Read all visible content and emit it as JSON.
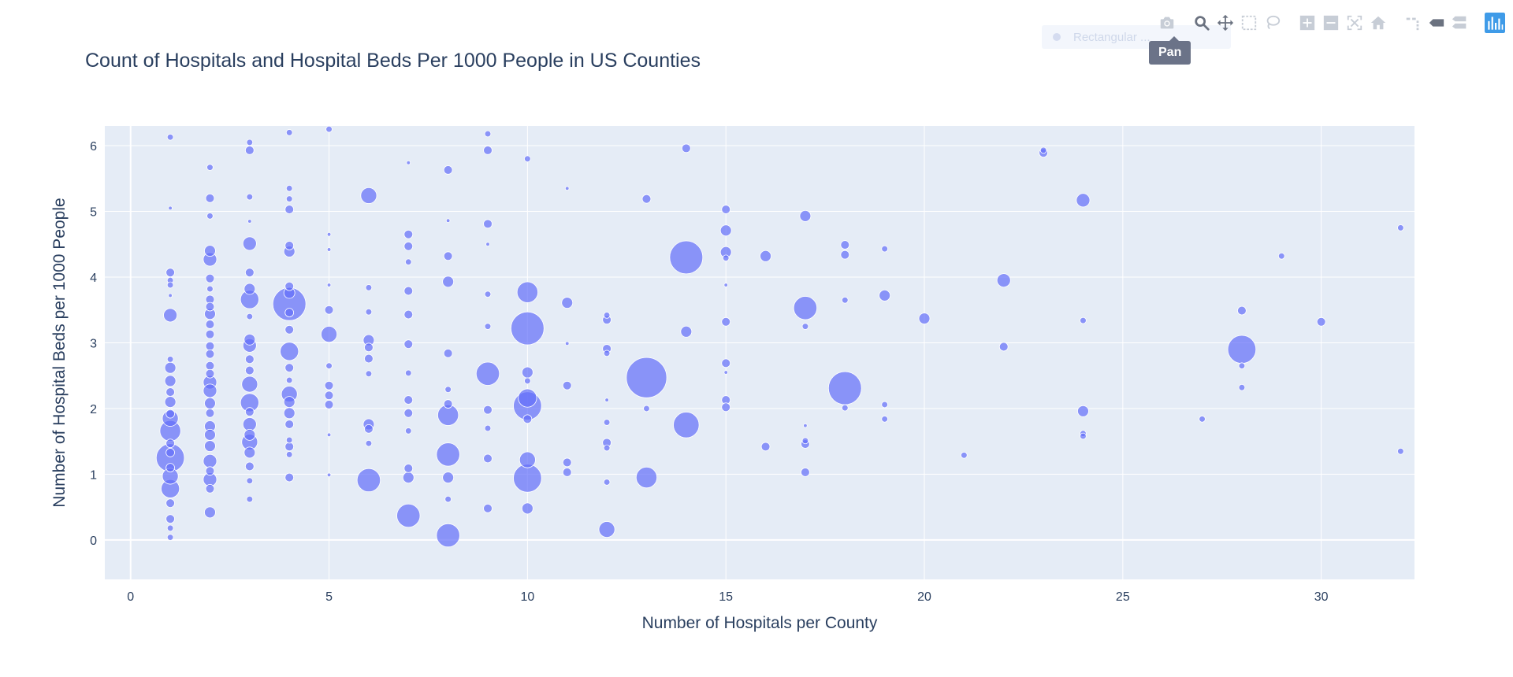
{
  "title": "Count of Hospitals and Hospital Beds Per 1000 People in US Counties",
  "modebar": {
    "buttons": [
      "camera-icon",
      "zoom-icon",
      "pan-icon",
      "box-select-icon",
      "lasso-icon",
      "zoom-in-icon",
      "zoom-out-icon",
      "autoscale-icon",
      "reset-axes-icon",
      "spike-lines-icon",
      "hover-closest-icon",
      "hover-compare-icon",
      "plotly-logo-icon"
    ],
    "active": "pan-icon",
    "hover_label": "Rectangular ...",
    "tooltip": "Pan"
  },
  "colors": {
    "marker": "#636efa",
    "plot_bg": "#e5ecf6",
    "text": "#2a3f5f",
    "grid": "#ffffff"
  },
  "chart_data": {
    "type": "scatter",
    "title": "Count of Hospitals and Hospital Beds Per 1000 People in US Counties",
    "xlabel": "Number of Hospitals per County",
    "ylabel": "Number of Hospital Beds per 1000 People",
    "xlim": [
      -0.65,
      32.35
    ],
    "ylim": [
      -0.6,
      6.3
    ],
    "xticks": [
      0,
      5,
      10,
      15,
      20,
      25,
      30
    ],
    "yticks": [
      0,
      1,
      2,
      3,
      4,
      5,
      6
    ],
    "grid": true,
    "legend": "none",
    "marker_size_encodes": "bubble size",
    "points": [
      {
        "x": 1,
        "y": 6.13,
        "s": 2
      },
      {
        "x": 1,
        "y": 5.05,
        "s": 1
      },
      {
        "x": 1,
        "y": 4.07,
        "s": 3
      },
      {
        "x": 1,
        "y": 3.95,
        "s": 2
      },
      {
        "x": 1,
        "y": 3.88,
        "s": 2
      },
      {
        "x": 1,
        "y": 3.72,
        "s": 1
      },
      {
        "x": 1,
        "y": 3.42,
        "s": 5
      },
      {
        "x": 1,
        "y": 2.75,
        "s": 2
      },
      {
        "x": 1,
        "y": 2.62,
        "s": 4
      },
      {
        "x": 1,
        "y": 2.42,
        "s": 4
      },
      {
        "x": 1,
        "y": 2.25,
        "s": 3
      },
      {
        "x": 1,
        "y": 2.1,
        "s": 4
      },
      {
        "x": 1,
        "y": 1.92,
        "s": 3
      },
      {
        "x": 1,
        "y": 1.85,
        "s": 6
      },
      {
        "x": 1,
        "y": 1.66,
        "s": 8
      },
      {
        "x": 1,
        "y": 1.47,
        "s": 3
      },
      {
        "x": 1,
        "y": 1.33,
        "s": 3
      },
      {
        "x": 1,
        "y": 1.25,
        "s": 11
      },
      {
        "x": 1,
        "y": 1.1,
        "s": 3
      },
      {
        "x": 1,
        "y": 0.97,
        "s": 6
      },
      {
        "x": 1,
        "y": 0.78,
        "s": 7
      },
      {
        "x": 1,
        "y": 0.56,
        "s": 3
      },
      {
        "x": 1,
        "y": 0.32,
        "s": 3
      },
      {
        "x": 1,
        "y": 0.18,
        "s": 2
      },
      {
        "x": 1,
        "y": 0.04,
        "s": 2
      },
      {
        "x": 2,
        "y": 5.67,
        "s": 2
      },
      {
        "x": 2,
        "y": 5.2,
        "s": 3
      },
      {
        "x": 2,
        "y": 4.93,
        "s": 2
      },
      {
        "x": 2,
        "y": 4.4,
        "s": 4
      },
      {
        "x": 2,
        "y": 4.27,
        "s": 5
      },
      {
        "x": 2,
        "y": 3.98,
        "s": 3
      },
      {
        "x": 2,
        "y": 3.82,
        "s": 2
      },
      {
        "x": 2,
        "y": 3.66,
        "s": 3
      },
      {
        "x": 2,
        "y": 3.55,
        "s": 3
      },
      {
        "x": 2,
        "y": 3.44,
        "s": 4
      },
      {
        "x": 2,
        "y": 3.28,
        "s": 3
      },
      {
        "x": 2,
        "y": 3.13,
        "s": 3
      },
      {
        "x": 2,
        "y": 2.95,
        "s": 3
      },
      {
        "x": 2,
        "y": 2.83,
        "s": 3
      },
      {
        "x": 2,
        "y": 2.65,
        "s": 3
      },
      {
        "x": 2,
        "y": 2.53,
        "s": 3
      },
      {
        "x": 2,
        "y": 2.4,
        "s": 5
      },
      {
        "x": 2,
        "y": 2.27,
        "s": 5
      },
      {
        "x": 2,
        "y": 2.08,
        "s": 4
      },
      {
        "x": 2,
        "y": 1.93,
        "s": 3
      },
      {
        "x": 2,
        "y": 1.73,
        "s": 4
      },
      {
        "x": 2,
        "y": 1.6,
        "s": 4
      },
      {
        "x": 2,
        "y": 1.43,
        "s": 4
      },
      {
        "x": 2,
        "y": 1.2,
        "s": 5
      },
      {
        "x": 2,
        "y": 1.05,
        "s": 3
      },
      {
        "x": 2,
        "y": 0.92,
        "s": 5
      },
      {
        "x": 2,
        "y": 0.78,
        "s": 3
      },
      {
        "x": 2,
        "y": 0.42,
        "s": 4
      },
      {
        "x": 3,
        "y": 6.05,
        "s": 2
      },
      {
        "x": 3,
        "y": 5.93,
        "s": 3
      },
      {
        "x": 3,
        "y": 5.22,
        "s": 2
      },
      {
        "x": 3,
        "y": 4.85,
        "s": 1
      },
      {
        "x": 3,
        "y": 4.51,
        "s": 5
      },
      {
        "x": 3,
        "y": 4.07,
        "s": 3
      },
      {
        "x": 3,
        "y": 3.82,
        "s": 4
      },
      {
        "x": 3,
        "y": 3.66,
        "s": 7
      },
      {
        "x": 3,
        "y": 3.4,
        "s": 2
      },
      {
        "x": 3,
        "y": 3.05,
        "s": 4
      },
      {
        "x": 3,
        "y": 2.96,
        "s": 5
      },
      {
        "x": 3,
        "y": 2.75,
        "s": 3
      },
      {
        "x": 3,
        "y": 2.58,
        "s": 3
      },
      {
        "x": 3,
        "y": 2.37,
        "s": 6
      },
      {
        "x": 3,
        "y": 2.09,
        "s": 7
      },
      {
        "x": 3,
        "y": 1.95,
        "s": 3
      },
      {
        "x": 3,
        "y": 1.76,
        "s": 5
      },
      {
        "x": 3,
        "y": 1.6,
        "s": 4
      },
      {
        "x": 3,
        "y": 1.49,
        "s": 6
      },
      {
        "x": 3,
        "y": 1.33,
        "s": 4
      },
      {
        "x": 3,
        "y": 1.12,
        "s": 3
      },
      {
        "x": 3,
        "y": 0.9,
        "s": 2
      },
      {
        "x": 3,
        "y": 0.62,
        "s": 2
      },
      {
        "x": 4,
        "y": 6.2,
        "s": 2
      },
      {
        "x": 4,
        "y": 5.35,
        "s": 2
      },
      {
        "x": 4,
        "y": 5.19,
        "s": 2
      },
      {
        "x": 4,
        "y": 5.03,
        "s": 3
      },
      {
        "x": 4,
        "y": 4.48,
        "s": 3
      },
      {
        "x": 4,
        "y": 4.39,
        "s": 4
      },
      {
        "x": 4,
        "y": 3.86,
        "s": 3
      },
      {
        "x": 4,
        "y": 3.76,
        "s": 4
      },
      {
        "x": 4,
        "y": 3.59,
        "s": 13
      },
      {
        "x": 4,
        "y": 3.46,
        "s": 3
      },
      {
        "x": 4,
        "y": 3.2,
        "s": 3
      },
      {
        "x": 4,
        "y": 2.87,
        "s": 7
      },
      {
        "x": 4,
        "y": 2.62,
        "s": 3
      },
      {
        "x": 4,
        "y": 2.43,
        "s": 2
      },
      {
        "x": 4,
        "y": 2.22,
        "s": 6
      },
      {
        "x": 4,
        "y": 2.1,
        "s": 4
      },
      {
        "x": 4,
        "y": 1.93,
        "s": 4
      },
      {
        "x": 4,
        "y": 1.76,
        "s": 3
      },
      {
        "x": 4,
        "y": 1.52,
        "s": 2
      },
      {
        "x": 4,
        "y": 1.42,
        "s": 3
      },
      {
        "x": 4,
        "y": 1.3,
        "s": 2
      },
      {
        "x": 4,
        "y": 0.95,
        "s": 3
      },
      {
        "x": 5,
        "y": 6.25,
        "s": 2
      },
      {
        "x": 5,
        "y": 4.65,
        "s": 1
      },
      {
        "x": 5,
        "y": 4.42,
        "s": 1
      },
      {
        "x": 5,
        "y": 3.88,
        "s": 1
      },
      {
        "x": 5,
        "y": 3.5,
        "s": 3
      },
      {
        "x": 5,
        "y": 3.13,
        "s": 6
      },
      {
        "x": 5,
        "y": 2.65,
        "s": 2
      },
      {
        "x": 5,
        "y": 2.35,
        "s": 3
      },
      {
        "x": 5,
        "y": 2.2,
        "s": 3
      },
      {
        "x": 5,
        "y": 2.06,
        "s": 3
      },
      {
        "x": 5,
        "y": 1.6,
        "s": 1
      },
      {
        "x": 5,
        "y": 0.99,
        "s": 1
      },
      {
        "x": 6,
        "y": 5.24,
        "s": 6
      },
      {
        "x": 6,
        "y": 3.84,
        "s": 2
      },
      {
        "x": 6,
        "y": 3.47,
        "s": 2
      },
      {
        "x": 6,
        "y": 3.04,
        "s": 4
      },
      {
        "x": 6,
        "y": 2.93,
        "s": 3
      },
      {
        "x": 6,
        "y": 2.76,
        "s": 3
      },
      {
        "x": 6,
        "y": 2.53,
        "s": 2
      },
      {
        "x": 6,
        "y": 1.76,
        "s": 4
      },
      {
        "x": 6,
        "y": 1.69,
        "s": 3
      },
      {
        "x": 6,
        "y": 1.47,
        "s": 2
      },
      {
        "x": 6,
        "y": 0.91,
        "s": 9
      },
      {
        "x": 7,
        "y": 5.74,
        "s": 1
      },
      {
        "x": 7,
        "y": 4.65,
        "s": 3
      },
      {
        "x": 7,
        "y": 4.47,
        "s": 3
      },
      {
        "x": 7,
        "y": 4.23,
        "s": 2
      },
      {
        "x": 7,
        "y": 3.79,
        "s": 3
      },
      {
        "x": 7,
        "y": 3.43,
        "s": 3
      },
      {
        "x": 7,
        "y": 2.98,
        "s": 3
      },
      {
        "x": 7,
        "y": 2.54,
        "s": 2
      },
      {
        "x": 7,
        "y": 2.13,
        "s": 3
      },
      {
        "x": 7,
        "y": 1.93,
        "s": 3
      },
      {
        "x": 7,
        "y": 1.66,
        "s": 2
      },
      {
        "x": 7,
        "y": 1.09,
        "s": 3
      },
      {
        "x": 7,
        "y": 0.95,
        "s": 4
      },
      {
        "x": 7,
        "y": 0.37,
        "s": 9
      },
      {
        "x": 8,
        "y": 5.63,
        "s": 3
      },
      {
        "x": 8,
        "y": 4.86,
        "s": 1
      },
      {
        "x": 8,
        "y": 4.32,
        "s": 3
      },
      {
        "x": 8,
        "y": 3.93,
        "s": 4
      },
      {
        "x": 8,
        "y": 2.84,
        "s": 3
      },
      {
        "x": 8,
        "y": 2.29,
        "s": 2
      },
      {
        "x": 8,
        "y": 2.07,
        "s": 3
      },
      {
        "x": 8,
        "y": 1.9,
        "s": 8
      },
      {
        "x": 8,
        "y": 1.3,
        "s": 9
      },
      {
        "x": 8,
        "y": 0.95,
        "s": 4
      },
      {
        "x": 8,
        "y": 0.62,
        "s": 2
      },
      {
        "x": 8,
        "y": 0.07,
        "s": 9
      },
      {
        "x": 9,
        "y": 6.18,
        "s": 2
      },
      {
        "x": 9,
        "y": 5.93,
        "s": 3
      },
      {
        "x": 9,
        "y": 4.81,
        "s": 3
      },
      {
        "x": 9,
        "y": 4.5,
        "s": 1
      },
      {
        "x": 9,
        "y": 3.74,
        "s": 2
      },
      {
        "x": 9,
        "y": 3.25,
        "s": 2
      },
      {
        "x": 9,
        "y": 2.53,
        "s": 9
      },
      {
        "x": 9,
        "y": 1.98,
        "s": 3
      },
      {
        "x": 9,
        "y": 1.7,
        "s": 2
      },
      {
        "x": 9,
        "y": 1.24,
        "s": 3
      },
      {
        "x": 9,
        "y": 0.48,
        "s": 3
      },
      {
        "x": 10,
        "y": 5.8,
        "s": 2
      },
      {
        "x": 10,
        "y": 3.77,
        "s": 8
      },
      {
        "x": 10,
        "y": 3.22,
        "s": 13
      },
      {
        "x": 10,
        "y": 2.55,
        "s": 4
      },
      {
        "x": 10,
        "y": 2.42,
        "s": 2
      },
      {
        "x": 10,
        "y": 2.16,
        "s": 7
      },
      {
        "x": 10,
        "y": 2.04,
        "s": 11
      },
      {
        "x": 10,
        "y": 1.84,
        "s": 3
      },
      {
        "x": 10,
        "y": 1.22,
        "s": 6
      },
      {
        "x": 10,
        "y": 0.94,
        "s": 11
      },
      {
        "x": 10,
        "y": 0.48,
        "s": 4
      },
      {
        "x": 11,
        "y": 5.35,
        "s": 1
      },
      {
        "x": 11,
        "y": 3.61,
        "s": 4
      },
      {
        "x": 11,
        "y": 2.99,
        "s": 1
      },
      {
        "x": 11,
        "y": 2.35,
        "s": 3
      },
      {
        "x": 11,
        "y": 1.18,
        "s": 3
      },
      {
        "x": 11,
        "y": 1.03,
        "s": 3
      },
      {
        "x": 12,
        "y": 3.42,
        "s": 2
      },
      {
        "x": 12,
        "y": 3.35,
        "s": 3
      },
      {
        "x": 12,
        "y": 2.91,
        "s": 3
      },
      {
        "x": 12,
        "y": 2.84,
        "s": 2
      },
      {
        "x": 12,
        "y": 2.13,
        "s": 1
      },
      {
        "x": 12,
        "y": 1.79,
        "s": 2
      },
      {
        "x": 12,
        "y": 1.48,
        "s": 3
      },
      {
        "x": 12,
        "y": 1.4,
        "s": 2
      },
      {
        "x": 12,
        "y": 0.88,
        "s": 2
      },
      {
        "x": 12,
        "y": 0.16,
        "s": 6
      },
      {
        "x": 13,
        "y": 5.19,
        "s": 3
      },
      {
        "x": 13,
        "y": 2.47,
        "s": 16
      },
      {
        "x": 13,
        "y": 2,
        "s": 2
      },
      {
        "x": 13,
        "y": 0.95,
        "s": 8
      },
      {
        "x": 14,
        "y": 5.96,
        "s": 3
      },
      {
        "x": 14,
        "y": 4.3,
        "s": 13
      },
      {
        "x": 14,
        "y": 3.17,
        "s": 4
      },
      {
        "x": 14,
        "y": 1.75,
        "s": 10
      },
      {
        "x": 15,
        "y": 5.03,
        "s": 3
      },
      {
        "x": 15,
        "y": 4.71,
        "s": 4
      },
      {
        "x": 15,
        "y": 4.38,
        "s": 4
      },
      {
        "x": 15,
        "y": 4.29,
        "s": 2
      },
      {
        "x": 15,
        "y": 3.88,
        "s": 1
      },
      {
        "x": 15,
        "y": 3.32,
        "s": 3
      },
      {
        "x": 15,
        "y": 2.69,
        "s": 3
      },
      {
        "x": 15,
        "y": 2.55,
        "s": 1
      },
      {
        "x": 15,
        "y": 2.13,
        "s": 3
      },
      {
        "x": 15,
        "y": 2.02,
        "s": 3
      },
      {
        "x": 16,
        "y": 4.32,
        "s": 4
      },
      {
        "x": 16,
        "y": 1.42,
        "s": 3
      },
      {
        "x": 17,
        "y": 4.93,
        "s": 4
      },
      {
        "x": 17,
        "y": 3.53,
        "s": 9
      },
      {
        "x": 17,
        "y": 3.25,
        "s": 2
      },
      {
        "x": 17,
        "y": 1.74,
        "s": 1
      },
      {
        "x": 17,
        "y": 1.51,
        "s": 2
      },
      {
        "x": 17,
        "y": 1.46,
        "s": 3
      },
      {
        "x": 17,
        "y": 1.03,
        "s": 3
      },
      {
        "x": 18,
        "y": 4.49,
        "s": 3
      },
      {
        "x": 18,
        "y": 4.34,
        "s": 3
      },
      {
        "x": 18,
        "y": 3.65,
        "s": 2
      },
      {
        "x": 18,
        "y": 2.31,
        "s": 13
      },
      {
        "x": 18,
        "y": 2.01,
        "s": 2
      },
      {
        "x": 19,
        "y": 4.43,
        "s": 2
      },
      {
        "x": 19,
        "y": 3.72,
        "s": 4
      },
      {
        "x": 19,
        "y": 2.06,
        "s": 2
      },
      {
        "x": 19,
        "y": 1.84,
        "s": 2
      },
      {
        "x": 20,
        "y": 3.37,
        "s": 4
      },
      {
        "x": 21,
        "y": 1.29,
        "s": 2
      },
      {
        "x": 22,
        "y": 3.95,
        "s": 5
      },
      {
        "x": 22,
        "y": 2.94,
        "s": 3
      },
      {
        "x": 23,
        "y": 5.93,
        "s": 2
      },
      {
        "x": 23,
        "y": 5.89,
        "s": 3
      },
      {
        "x": 24,
        "y": 5.17,
        "s": 5
      },
      {
        "x": 24,
        "y": 3.34,
        "s": 2
      },
      {
        "x": 24,
        "y": 1.96,
        "s": 4
      },
      {
        "x": 24,
        "y": 1.62,
        "s": 2
      },
      {
        "x": 24,
        "y": 1.58,
        "s": 2
      },
      {
        "x": 27,
        "y": 1.84,
        "s": 2
      },
      {
        "x": 28,
        "y": 3.49,
        "s": 3
      },
      {
        "x": 28,
        "y": 2.9,
        "s": 11
      },
      {
        "x": 28,
        "y": 2.65,
        "s": 2
      },
      {
        "x": 28,
        "y": 2.32,
        "s": 2
      },
      {
        "x": 29,
        "y": 4.32,
        "s": 2
      },
      {
        "x": 30,
        "y": 3.32,
        "s": 3
      },
      {
        "x": 32,
        "y": 4.75,
        "s": 2
      },
      {
        "x": 32,
        "y": 1.35,
        "s": 2
      }
    ]
  }
}
